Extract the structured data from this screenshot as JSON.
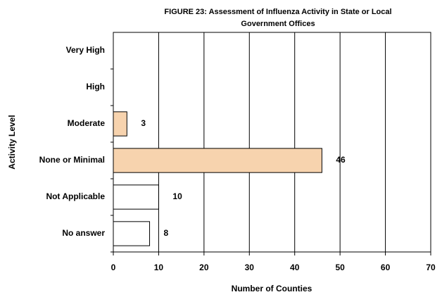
{
  "chart_data": {
    "type": "hbar",
    "title": [
      "FIGURE  23: Assessment of Influenza Activity in State or Local",
      "Government Offices"
    ],
    "xlabel": "Number of Counties",
    "ylabel": "Activity Level",
    "categories": [
      "Very High",
      "High",
      "Moderate",
      "None or Minimal",
      "Not Applicable",
      "No answer"
    ],
    "values": [
      0,
      0,
      3,
      46,
      10,
      8
    ],
    "colors": [
      "#f7d3ae",
      "#f7d3ae",
      "#f7d3ae",
      "#f7d3ae",
      "#ffffff",
      "#ffffff"
    ],
    "xlim": [
      0,
      70
    ],
    "xticks": [
      0,
      10,
      20,
      30,
      40,
      50,
      60,
      70
    ],
    "grid": true
  }
}
